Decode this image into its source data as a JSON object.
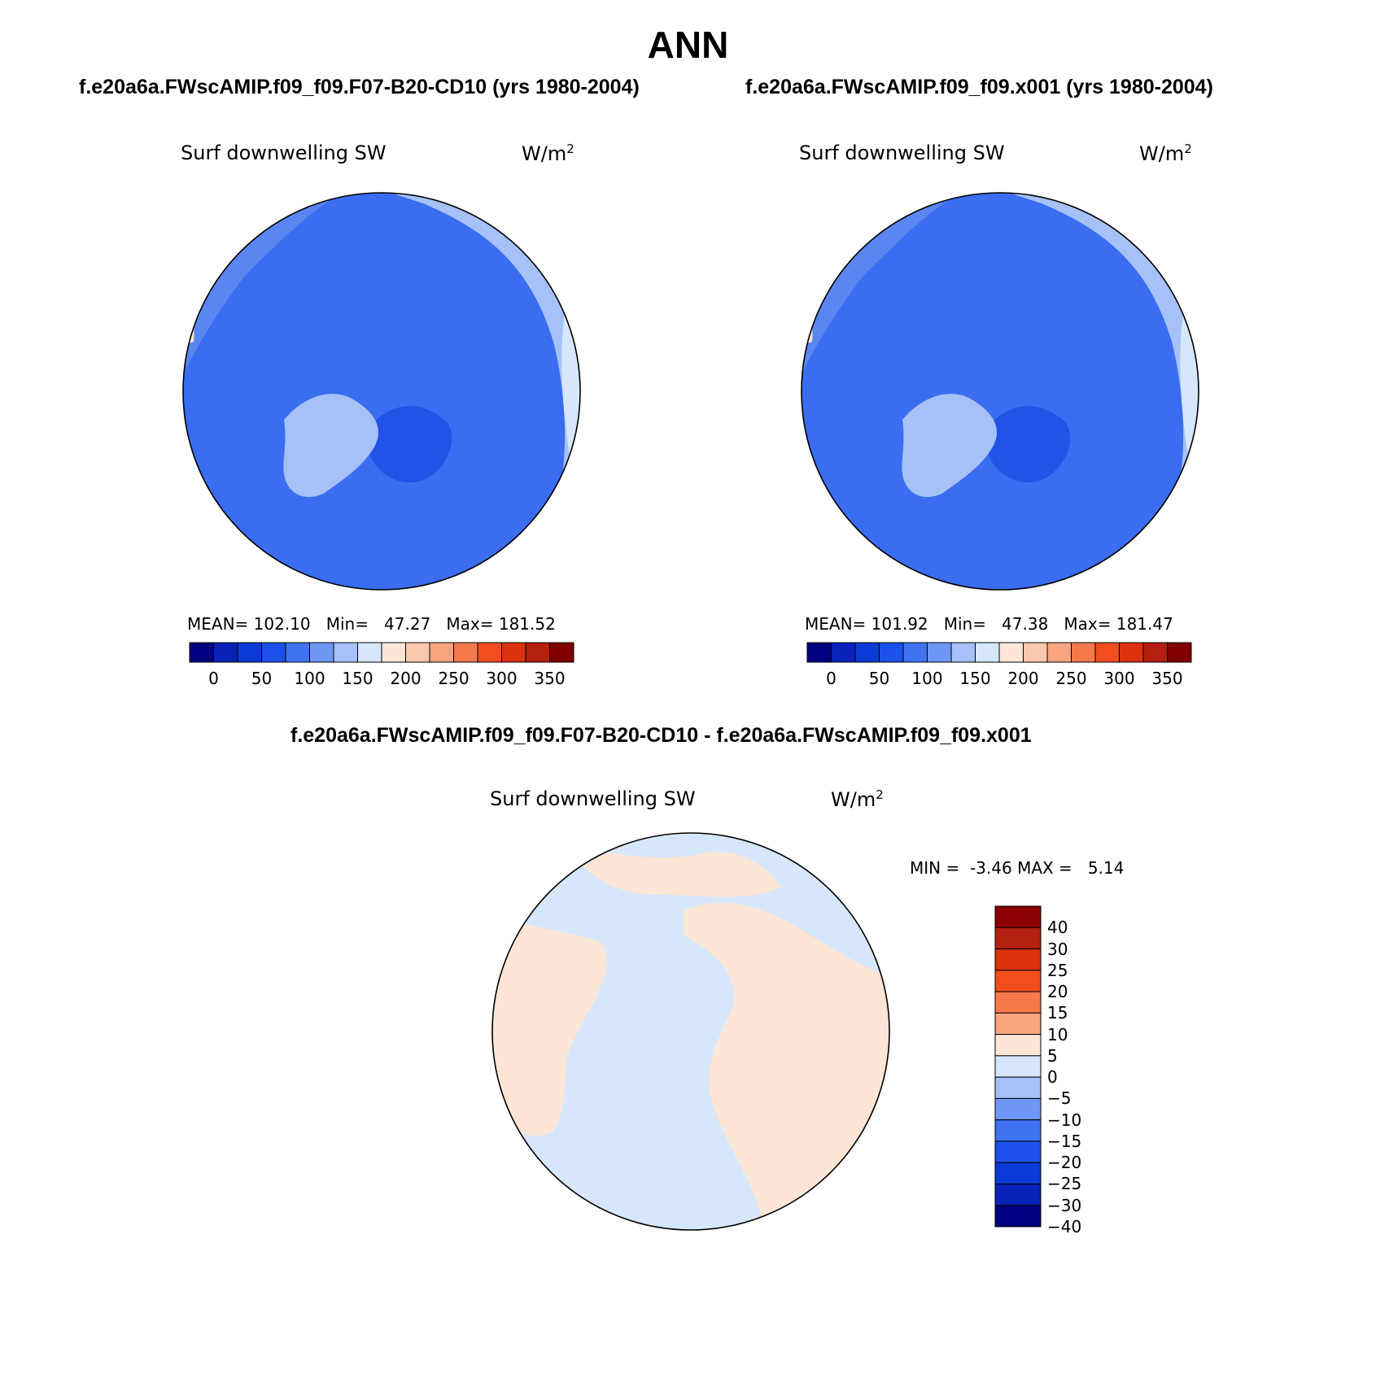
{
  "figure": {
    "title": "ANN"
  },
  "panels": [
    {
      "subtitle": "f.e20a6a.FWscAMIP.f09_f09.F07-B20-CD10 (yrs 1980-2004)",
      "variable": "Surf downwelling SW",
      "units_base": "W/m",
      "units_exp": "2",
      "mean_label": "MEAN=",
      "mean": "102.10",
      "min_label": "Min=",
      "min": "47.27",
      "max_label": "Max=",
      "max": "181.52"
    },
    {
      "subtitle": "f.e20a6a.FWscAMIP.f09_f09.x001 (yrs 1980-2004)",
      "variable": "Surf downwelling SW",
      "units_base": "W/m",
      "units_exp": "2",
      "mean_label": "MEAN=",
      "mean": "101.92",
      "min_label": "Min=",
      "min": "47.38",
      "max_label": "Max=",
      "max": "181.47"
    },
    {
      "subtitle": "f.e20a6a.FWscAMIP.f09_f09.F07-B20-CD10 - f.e20a6a.FWscAMIP.f09_f09.x001",
      "variable": "Surf downwelling SW",
      "units_base": "W/m",
      "units_exp": "2",
      "min_label": "MIN =",
      "min": "-3.46",
      "max_label": "MAX =",
      "max": "5.14"
    }
  ],
  "colorbars": {
    "absolute": {
      "colors": [
        "#000080",
        "#0a22b8",
        "#0a3bd4",
        "#1c52ea",
        "#3f73f0",
        "#6f97f4",
        "#a6c1f7",
        "#d6e7fb",
        "#fde6d6",
        "#fbc8ad",
        "#f9a57f",
        "#f6794a",
        "#f04e1f",
        "#dc320e",
        "#b32010",
        "#800000"
      ],
      "ticks": [
        "0",
        "50",
        "100",
        "150",
        "200",
        "250",
        "300",
        "350"
      ]
    },
    "difference": {
      "colors": [
        "#8b0000",
        "#b32010",
        "#dc320e",
        "#f04e1f",
        "#f6794a",
        "#f9a57f",
        "#fde6d6",
        "#d6e7fb",
        "#a6c1f7",
        "#6f97f4",
        "#3f73f0",
        "#1c52ea",
        "#0a3bd4",
        "#0a22b8",
        "#000080"
      ],
      "ticks": [
        "40",
        "30",
        "25",
        "20",
        "15",
        "10",
        "5",
        "0",
        "−5",
        "−10",
        "−15",
        "−20",
        "−25",
        "−30",
        "−40"
      ]
    }
  },
  "map_colors": {
    "ocean_dark": "#3a6df0",
    "region_mid": "#5a86f2",
    "region_light": "#a6c1f7",
    "region_pale": "#d6e7fb",
    "region_warm": "#fde6d6",
    "greenland": "#a6c1f7",
    "deep_blue": "#2352e6",
    "diff_neg": "#d6e7fb",
    "diff_pos": "#fde6d6"
  }
}
